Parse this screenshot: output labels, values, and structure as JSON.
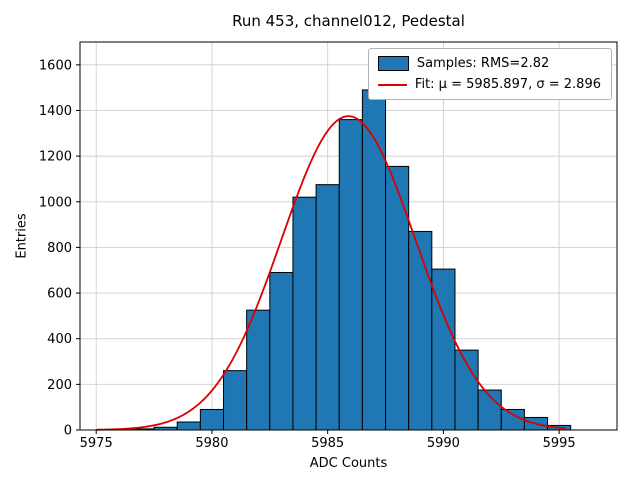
{
  "chart_data": {
    "type": "bar",
    "subtype": "histogram-with-gaussian-fit",
    "title": "Run 453, channel012, Pedestal",
    "xlabel": "ADC Counts",
    "ylabel": "Entries",
    "xlim": [
      5974.3,
      5997.5
    ],
    "ylim": [
      0,
      1700
    ],
    "xticks": [
      5975,
      5980,
      5985,
      5990,
      5995
    ],
    "yticks": [
      0,
      200,
      400,
      600,
      800,
      1000,
      1200,
      1400,
      1600
    ],
    "grid": true,
    "bin_start": 5976.5,
    "bin_width": 1,
    "counts": [
      5,
      12,
      35,
      90,
      260,
      525,
      690,
      1020,
      1075,
      1360,
      1490,
      1155,
      870,
      705,
      350,
      175,
      90,
      55,
      20
    ],
    "fit": {
      "mu": 5985.897,
      "sigma": 2.896,
      "curve_x_start": 5975.0,
      "curve_x_end": 5995.3
    },
    "colors": {
      "bar_fill": "#1f77b4",
      "bar_edge": "#000000",
      "fit_line": "#dd0000",
      "grid_line": "#cfcfcf",
      "axes": "#000000"
    },
    "legend": {
      "position": "upper right",
      "entries": [
        {
          "label": "Samples: RMS=2.82",
          "handle": "patch"
        },
        {
          "label": "Fit: μ = 5985.897, σ = 2.896",
          "handle": "line"
        }
      ]
    }
  }
}
